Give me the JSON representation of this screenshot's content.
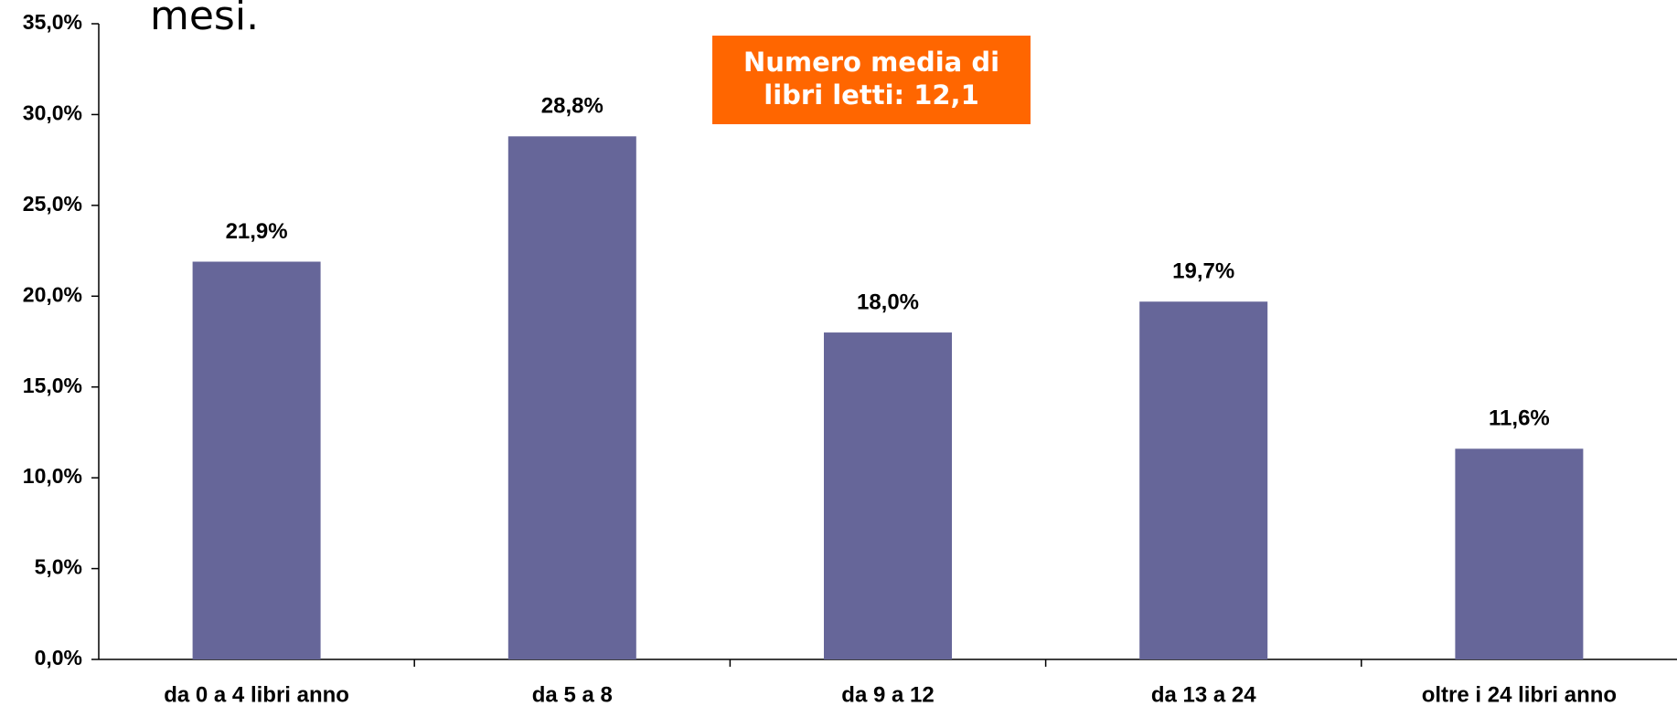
{
  "chart_data": {
    "type": "bar",
    "title": "mesi.",
    "annotation": [
      "Numero media di",
      "libri letti: 12,1"
    ],
    "annotation_color": "#ff6600",
    "categories": [
      "da 0 a 4 libri anno",
      "da 5 a 8",
      "da 9 a 12",
      "da 13 a 24",
      "oltre i 24 libri anno"
    ],
    "values": [
      21.9,
      28.8,
      18.0,
      19.7,
      11.6
    ],
    "value_labels": [
      "21,9%",
      "28,8%",
      "18,0%",
      "19,7%",
      "11,6%"
    ],
    "color": "#666699",
    "ylim": [
      0,
      35
    ],
    "yticks": [
      {
        "value": 0,
        "label": "0,0%"
      },
      {
        "value": 5,
        "label": "5,0%"
      },
      {
        "value": 10,
        "label": "10,0%"
      },
      {
        "value": 15,
        "label": "15,0%"
      },
      {
        "value": 20,
        "label": "20,0%"
      },
      {
        "value": 25,
        "label": "25,0%"
      },
      {
        "value": 30,
        "label": "30,0%"
      },
      {
        "value": 35,
        "label": "35,0%"
      }
    ],
    "grid": false
  }
}
